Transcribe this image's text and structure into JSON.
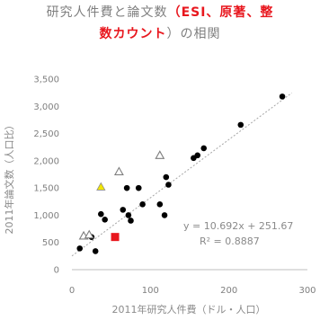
{
  "title": {
    "line1_plain": "研究人件費と論文数",
    "line1_open": "（",
    "line1_red": "ESI、原著、整",
    "line2_red": "数カウント",
    "line2_rest": "）の相関"
  },
  "colors": {
    "text": "#7f7f7f",
    "axis": "#bfbfbf",
    "trendline": "#a6a6a6",
    "circle_series": "#000000",
    "triangle_series": "#7f7f7f",
    "yellow_triangle": "#f2e600",
    "red_square": "#e8171e",
    "title_highlight": "#e8171e"
  },
  "chart_data": {
    "type": "scatter",
    "title": "研究人件費と論文数（ESI、原著、整数カウント）の相関",
    "xlabel": "2011年研究人件費（ドル・人口）",
    "ylabel": "2011年論文数（人口比）",
    "xlim": [
      0,
      300
    ],
    "ylim": [
      0,
      3500
    ],
    "x_ticks": [
      "0",
      "100",
      "200",
      "300"
    ],
    "y_ticks": [
      "0",
      "500",
      "1,000",
      "1,500",
      "2,000",
      "2,500",
      "3,000",
      "3,500"
    ],
    "grid": false,
    "trendline": {
      "slope": 10.692,
      "intercept": 251.67,
      "equation": "y = 10.692x + 251.67",
      "r2": "R² = 0.8887"
    },
    "series": [
      {
        "marker": "circle",
        "points": [
          [
            10,
            390
          ],
          [
            25,
            600
          ],
          [
            30,
            340
          ],
          [
            37,
            1020
          ],
          [
            42,
            920
          ],
          [
            65,
            1100
          ],
          [
            70,
            1500
          ],
          [
            72,
            1000
          ],
          [
            75,
            900
          ],
          [
            85,
            1500
          ],
          [
            90,
            1200
          ],
          [
            112,
            1200
          ],
          [
            118,
            1000
          ],
          [
            120,
            1700
          ],
          [
            123,
            1560
          ],
          [
            155,
            2050
          ],
          [
            160,
            2100
          ],
          [
            168,
            2230
          ],
          [
            215,
            2660
          ],
          [
            268,
            3180
          ]
        ]
      },
      {
        "marker": "triangle-open",
        "points": [
          [
            15,
            620
          ],
          [
            22,
            640
          ],
          [
            60,
            1800
          ],
          [
            112,
            2100
          ]
        ]
      },
      {
        "marker": "triangle-yellow",
        "points": [
          [
            37,
            1520
          ]
        ]
      },
      {
        "marker": "square-red",
        "points": [
          [
            55,
            600
          ]
        ]
      }
    ]
  }
}
